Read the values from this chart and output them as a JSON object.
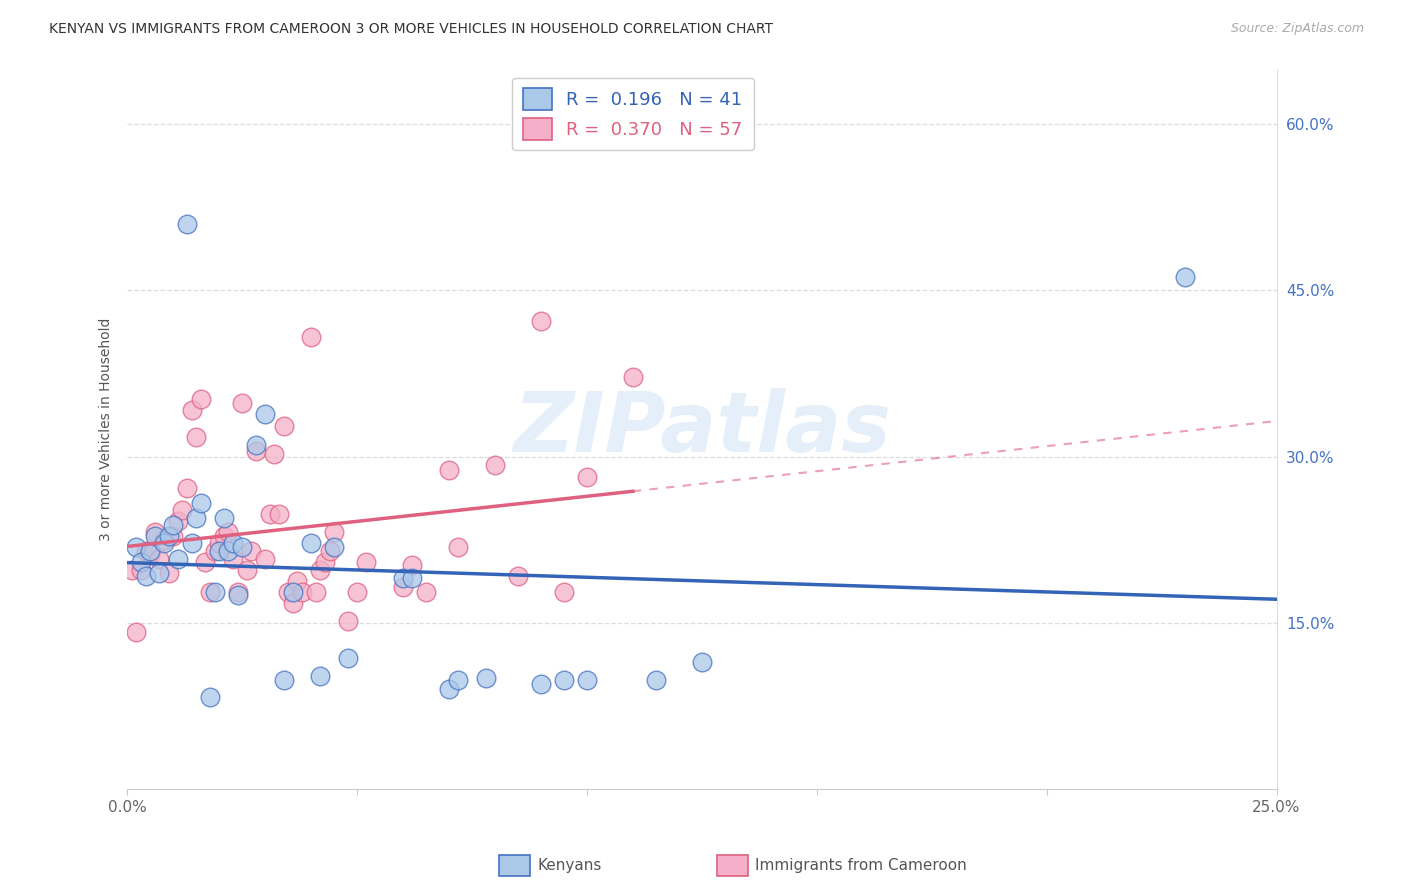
{
  "title": "KENYAN VS IMMIGRANTS FROM CAMEROON 3 OR MORE VEHICLES IN HOUSEHOLD CORRELATION CHART",
  "source": "Source: ZipAtlas.com",
  "ylabel_label": "3 or more Vehicles in Household",
  "xlim": [
    0.0,
    0.25
  ],
  "ylim": [
    0.0,
    0.65
  ],
  "xtick_positions": [
    0.0,
    0.05,
    0.1,
    0.15,
    0.2,
    0.25
  ],
  "xtick_labels": [
    "0.0%",
    "",
    "",
    "",
    "",
    "25.0%"
  ],
  "ytick_positions": [
    0.15,
    0.3,
    0.45,
    0.6
  ],
  "ytick_labels": [
    "15.0%",
    "30.0%",
    "45.0%",
    "60.0%"
  ],
  "kenyan_fill_color": "#aac8e8",
  "kenyan_edge_color": "#4472c4",
  "cameroon_fill_color": "#f4b0c8",
  "cameroon_edge_color": "#e06080",
  "kenyan_line_color": "#3464b8",
  "cameroon_line_color": "#e06080",
  "kenyan_R": 0.196,
  "kenyan_N": 41,
  "cameroon_R": 0.37,
  "cameroon_N": 57,
  "watermark": "ZIPatlas",
  "kenyan_points": [
    [
      0.002,
      0.218
    ],
    [
      0.003,
      0.205
    ],
    [
      0.004,
      0.192
    ],
    [
      0.005,
      0.215
    ],
    [
      0.006,
      0.228
    ],
    [
      0.007,
      0.195
    ],
    [
      0.008,
      0.222
    ],
    [
      0.009,
      0.228
    ],
    [
      0.01,
      0.238
    ],
    [
      0.011,
      0.208
    ],
    [
      0.013,
      0.51
    ],
    [
      0.014,
      0.222
    ],
    [
      0.015,
      0.245
    ],
    [
      0.016,
      0.258
    ],
    [
      0.018,
      0.083
    ],
    [
      0.019,
      0.178
    ],
    [
      0.02,
      0.215
    ],
    [
      0.021,
      0.245
    ],
    [
      0.022,
      0.215
    ],
    [
      0.023,
      0.222
    ],
    [
      0.024,
      0.175
    ],
    [
      0.025,
      0.218
    ],
    [
      0.028,
      0.31
    ],
    [
      0.03,
      0.338
    ],
    [
      0.034,
      0.098
    ],
    [
      0.036,
      0.178
    ],
    [
      0.04,
      0.222
    ],
    [
      0.042,
      0.102
    ],
    [
      0.045,
      0.218
    ],
    [
      0.048,
      0.118
    ],
    [
      0.06,
      0.19
    ],
    [
      0.062,
      0.19
    ],
    [
      0.07,
      0.09
    ],
    [
      0.072,
      0.098
    ],
    [
      0.078,
      0.1
    ],
    [
      0.09,
      0.095
    ],
    [
      0.095,
      0.098
    ],
    [
      0.1,
      0.098
    ],
    [
      0.115,
      0.098
    ],
    [
      0.125,
      0.115
    ],
    [
      0.23,
      0.462
    ]
  ],
  "cameroon_points": [
    [
      0.001,
      0.198
    ],
    [
      0.002,
      0.142
    ],
    [
      0.003,
      0.198
    ],
    [
      0.004,
      0.215
    ],
    [
      0.005,
      0.212
    ],
    [
      0.006,
      0.232
    ],
    [
      0.007,
      0.208
    ],
    [
      0.008,
      0.225
    ],
    [
      0.009,
      0.195
    ],
    [
      0.01,
      0.228
    ],
    [
      0.011,
      0.242
    ],
    [
      0.012,
      0.252
    ],
    [
      0.013,
      0.272
    ],
    [
      0.014,
      0.342
    ],
    [
      0.015,
      0.318
    ],
    [
      0.016,
      0.352
    ],
    [
      0.017,
      0.205
    ],
    [
      0.018,
      0.178
    ],
    [
      0.019,
      0.215
    ],
    [
      0.02,
      0.222
    ],
    [
      0.021,
      0.228
    ],
    [
      0.022,
      0.232
    ],
    [
      0.023,
      0.208
    ],
    [
      0.024,
      0.178
    ],
    [
      0.025,
      0.348
    ],
    [
      0.026,
      0.198
    ],
    [
      0.027,
      0.215
    ],
    [
      0.028,
      0.305
    ],
    [
      0.03,
      0.208
    ],
    [
      0.031,
      0.248
    ],
    [
      0.032,
      0.302
    ],
    [
      0.033,
      0.248
    ],
    [
      0.034,
      0.328
    ],
    [
      0.035,
      0.178
    ],
    [
      0.036,
      0.168
    ],
    [
      0.037,
      0.188
    ],
    [
      0.038,
      0.178
    ],
    [
      0.04,
      0.408
    ],
    [
      0.041,
      0.178
    ],
    [
      0.042,
      0.198
    ],
    [
      0.043,
      0.205
    ],
    [
      0.044,
      0.215
    ],
    [
      0.045,
      0.232
    ],
    [
      0.048,
      0.152
    ],
    [
      0.05,
      0.178
    ],
    [
      0.052,
      0.205
    ],
    [
      0.06,
      0.182
    ],
    [
      0.062,
      0.202
    ],
    [
      0.065,
      0.178
    ],
    [
      0.07,
      0.288
    ],
    [
      0.072,
      0.218
    ],
    [
      0.08,
      0.292
    ],
    [
      0.085,
      0.192
    ],
    [
      0.09,
      0.422
    ],
    [
      0.095,
      0.178
    ],
    [
      0.1,
      0.282
    ],
    [
      0.11,
      0.372
    ]
  ],
  "background_color": "#ffffff",
  "grid_color": "#dddddd"
}
